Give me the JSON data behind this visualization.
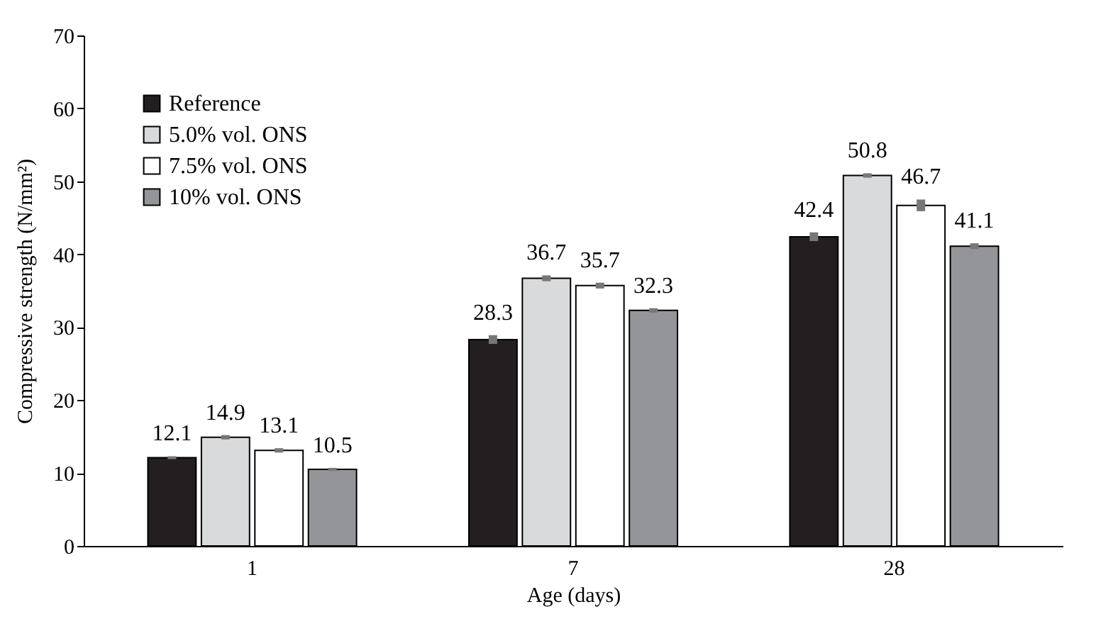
{
  "chart_data": {
    "type": "bar",
    "xlabel": "Age (days)",
    "ylabel": "Compressive strength (N/mm²)",
    "categories": [
      "1",
      "7",
      "28"
    ],
    "series": [
      {
        "name": "Reference",
        "color": "#231f20",
        "values": [
          12.1,
          28.3,
          42.4
        ],
        "errors": [
          0.2,
          0.6,
          0.6
        ]
      },
      {
        "name": "5.0% vol. ONS",
        "color": "#d9dadb",
        "values": [
          14.9,
          36.7,
          50.8
        ],
        "errors": [
          0.3,
          0.4,
          0.3
        ]
      },
      {
        "name": "7.5% vol. ONS",
        "color": "#ffffff",
        "values": [
          13.1,
          35.7,
          46.7
        ],
        "errors": [
          0.3,
          0.4,
          0.8
        ]
      },
      {
        "name": "10% vol. ONS",
        "color": "#939598",
        "values": [
          10.5,
          32.3,
          41.1
        ],
        "errors": [
          0.2,
          0.3,
          0.4
        ]
      }
    ],
    "ylim": [
      0,
      70
    ],
    "yticks": [
      0,
      10,
      20,
      30,
      40,
      50,
      60,
      70
    ],
    "grid": false,
    "legend": "top left",
    "data_labels": true
  }
}
